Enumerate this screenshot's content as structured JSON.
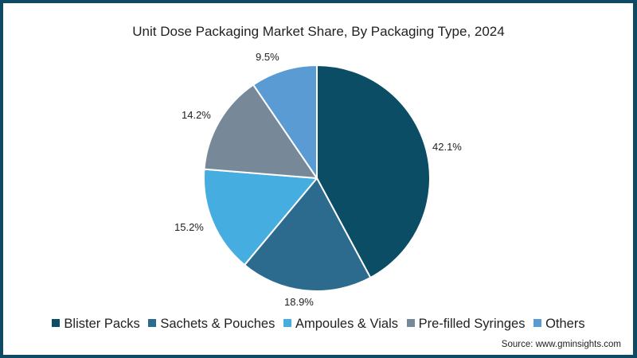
{
  "chart_data": {
    "type": "pie",
    "title": "Unit Dose Packaging Market Share, By Packaging Type, 2024",
    "categories": [
      "Blister Packs",
      "Sachets & Pouches",
      "Ampoules & Vials",
      "Pre-filled Syringes",
      "Others"
    ],
    "values": [
      42.1,
      18.9,
      15.2,
      14.2,
      9.5
    ],
    "labels": [
      "42.1%",
      "18.9%",
      "15.2%",
      "14.2%",
      "9.5%"
    ],
    "colors": [
      "#0b4d65",
      "#2c6b8e",
      "#45ade0",
      "#778899",
      "#5a9bd4"
    ],
    "legend_position": "bottom",
    "start_angle": "12 o'clock, clockwise",
    "source": "Source: www.gminsights.com"
  },
  "title": "Unit Dose Packaging Market Share, By Packaging Type, 2024",
  "labels": {
    "blister": "42.1%",
    "sachets": "18.9%",
    "ampoules": "15.2%",
    "syringes": "14.2%",
    "others": "9.5%"
  },
  "legend": [
    {
      "label": "Blister Packs",
      "color": "#0b4d65"
    },
    {
      "label": "Sachets & Pouches",
      "color": "#2c6b8e"
    },
    {
      "label": "Ampoules & Vials",
      "color": "#45ade0"
    },
    {
      "label": "Pre-filled Syringes",
      "color": "#778899"
    },
    {
      "label": "Others",
      "color": "#5a9bd4"
    }
  ],
  "source": "Source: www.gminsights.com"
}
